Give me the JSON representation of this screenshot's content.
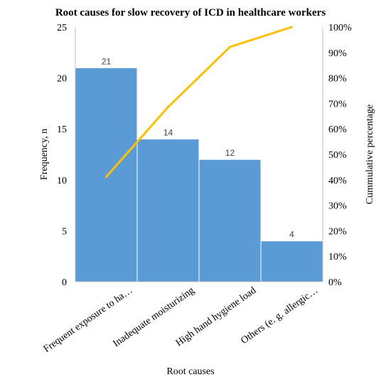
{
  "chart_data": {
    "type": "bar",
    "title": "Root causes for slow recovery of ICD in healthcare workers",
    "xlabel": "Root causes",
    "ylabel": "Frequency, n",
    "y2label": "Cummulative percentage",
    "categories": [
      "Frequent exposure to ha…",
      "Inadequate moisturizing",
      "High hand hygiene load",
      "Others (e. g. allergic…"
    ],
    "series": [
      {
        "values": [
          21,
          14,
          12,
          4
        ],
        "color": "#5b9bd5",
        "data_labels": [
          "21",
          "14",
          "12",
          "4"
        ]
      },
      {
        "type": "line",
        "axis": "secondary",
        "values": [
          41.2,
          68.6,
          92.2,
          100
        ],
        "color": "#ffc000"
      }
    ],
    "ylim": [
      0,
      25
    ],
    "yticks": [
      "0",
      "5",
      "10",
      "15",
      "20",
      "25"
    ],
    "y2lim": [
      0,
      100
    ],
    "y2ticks": [
      "0%",
      "10%",
      "20%",
      "30%",
      "40%",
      "50%",
      "60%",
      "70%",
      "80%",
      "90%",
      "100%"
    ],
    "grid": false,
    "legend": "none"
  }
}
